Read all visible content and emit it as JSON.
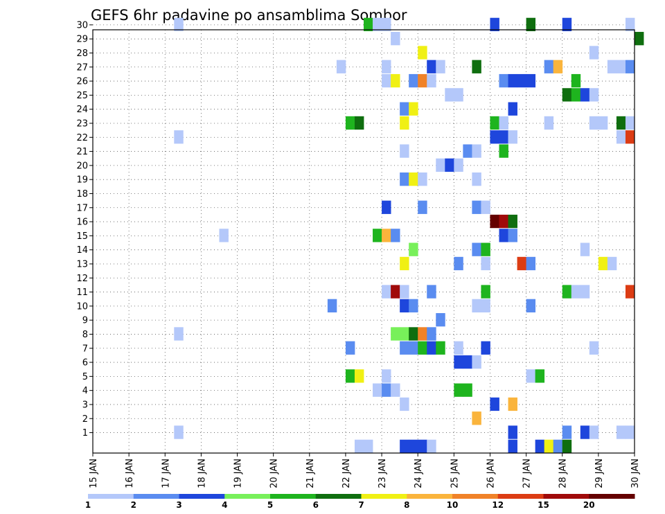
{
  "chart_data": {
    "type": "heatmap",
    "title": "GEFS 6hr padavine po ansamblima Sombor",
    "xlabel": "",
    "ylabel": "",
    "x_tick_labels": [
      "15 JAN",
      "16 JAN",
      "17 JAN",
      "18 JAN",
      "19 JAN",
      "20 JAN",
      "21 JAN",
      "22 JAN",
      "23 JAN",
      "24 JAN",
      "25 JAN",
      "26 JAN",
      "27 JAN",
      "28 JAN",
      "29 JAN",
      "30 JAN"
    ],
    "x_range_days": [
      15,
      30
    ],
    "time_step_hours": 6,
    "y_tick_labels": [
      "1",
      "2",
      "3",
      "4",
      "5",
      "6",
      "7",
      "8",
      "9",
      "10",
      "11",
      "12",
      "13",
      "14",
      "15",
      "16",
      "17",
      "18",
      "19",
      "20",
      "21",
      "22",
      "23",
      "24",
      "25",
      "26",
      "27",
      "28",
      "29",
      "30"
    ],
    "y_range": [
      0,
      30
    ],
    "grid": true,
    "legend": {
      "placement": "bottom",
      "colors": [
        "#b4c8fa",
        "#5a8cf0",
        "#1e46dc",
        "#78f05a",
        "#1eb41e",
        "#0f6e0f",
        "#f0f014",
        "#fab43c",
        "#f08228",
        "#dc3c14",
        "#a00a0a",
        "#640000"
      ],
      "labels": [
        "1",
        "2",
        "3",
        "4",
        "5",
        "6",
        "7",
        "8",
        "10",
        "12",
        "15",
        "20"
      ]
    },
    "cells_encoding": "[member (0-30), time step index (0 = 15 JAN 00Z, 4 per day), color index into legend.colors]",
    "cells": [
      [
        30,
        9,
        0
      ],
      [
        30,
        30,
        4
      ],
      [
        30,
        31,
        0
      ],
      [
        30,
        32,
        0
      ],
      [
        30,
        44,
        2
      ],
      [
        30,
        48,
        5
      ],
      [
        30,
        52,
        2
      ],
      [
        30,
        59,
        0
      ],
      [
        29,
        33,
        0
      ],
      [
        29,
        60,
        5
      ],
      [
        28,
        36,
        6
      ],
      [
        28,
        55,
        0
      ],
      [
        27,
        27,
        0
      ],
      [
        27,
        32,
        0
      ],
      [
        27,
        37,
        2
      ],
      [
        27,
        38,
        0
      ],
      [
        27,
        42,
        5
      ],
      [
        27,
        50,
        1
      ],
      [
        27,
        51,
        7
      ],
      [
        27,
        57,
        0
      ],
      [
        27,
        58,
        0
      ],
      [
        27,
        59,
        1
      ],
      [
        26,
        32,
        0
      ],
      [
        26,
        33,
        6
      ],
      [
        26,
        35,
        1
      ],
      [
        26,
        36,
        8
      ],
      [
        26,
        37,
        0
      ],
      [
        26,
        45,
        1
      ],
      [
        26,
        46,
        2
      ],
      [
        26,
        47,
        2
      ],
      [
        26,
        48,
        2
      ],
      [
        26,
        53,
        4
      ],
      [
        25,
        39,
        0
      ],
      [
        25,
        40,
        0
      ],
      [
        25,
        52,
        5
      ],
      [
        25,
        53,
        4
      ],
      [
        25,
        54,
        2
      ],
      [
        25,
        55,
        0
      ],
      [
        24,
        34,
        1
      ],
      [
        24,
        35,
        6
      ],
      [
        24,
        46,
        2
      ],
      [
        23,
        28,
        4
      ],
      [
        23,
        29,
        5
      ],
      [
        23,
        34,
        6
      ],
      [
        23,
        44,
        4
      ],
      [
        23,
        45,
        0
      ],
      [
        23,
        50,
        0
      ],
      [
        23,
        55,
        0
      ],
      [
        23,
        56,
        0
      ],
      [
        23,
        58,
        5
      ],
      [
        23,
        59,
        0
      ],
      [
        22,
        9,
        0
      ],
      [
        22,
        44,
        2
      ],
      [
        22,
        45,
        2
      ],
      [
        22,
        46,
        0
      ],
      [
        22,
        58,
        0
      ],
      [
        22,
        59,
        9
      ],
      [
        21,
        34,
        0
      ],
      [
        21,
        41,
        1
      ],
      [
        21,
        42,
        0
      ],
      [
        21,
        45,
        4
      ],
      [
        20,
        38,
        0
      ],
      [
        20,
        39,
        2
      ],
      [
        20,
        40,
        0
      ],
      [
        19,
        34,
        1
      ],
      [
        19,
        35,
        6
      ],
      [
        19,
        36,
        0
      ],
      [
        19,
        42,
        0
      ],
      [
        17,
        32,
        2
      ],
      [
        17,
        36,
        1
      ],
      [
        17,
        42,
        1
      ],
      [
        17,
        43,
        0
      ],
      [
        16,
        44,
        11
      ],
      [
        16,
        45,
        10
      ],
      [
        16,
        46,
        5
      ],
      [
        15,
        14,
        0
      ],
      [
        15,
        31,
        4
      ],
      [
        15,
        32,
        7
      ],
      [
        15,
        33,
        1
      ],
      [
        15,
        45,
        2
      ],
      [
        15,
        46,
        1
      ],
      [
        14,
        35,
        3
      ],
      [
        14,
        42,
        1
      ],
      [
        14,
        43,
        4
      ],
      [
        14,
        54,
        0
      ],
      [
        13,
        34,
        6
      ],
      [
        13,
        40,
        1
      ],
      [
        13,
        43,
        0
      ],
      [
        13,
        47,
        9
      ],
      [
        13,
        48,
        1
      ],
      [
        13,
        56,
        6
      ],
      [
        13,
        57,
        0
      ],
      [
        11,
        32,
        0
      ],
      [
        11,
        33,
        10
      ],
      [
        11,
        34,
        0
      ],
      [
        11,
        37,
        1
      ],
      [
        11,
        43,
        4
      ],
      [
        11,
        52,
        4
      ],
      [
        11,
        53,
        0
      ],
      [
        11,
        54,
        0
      ],
      [
        11,
        59,
        9
      ],
      [
        10,
        26,
        1
      ],
      [
        10,
        34,
        2
      ],
      [
        10,
        35,
        1
      ],
      [
        10,
        42,
        0
      ],
      [
        10,
        43,
        0
      ],
      [
        10,
        48,
        1
      ],
      [
        9,
        38,
        1
      ],
      [
        8,
        9,
        0
      ],
      [
        8,
        33,
        3
      ],
      [
        8,
        34,
        3
      ],
      [
        8,
        35,
        5
      ],
      [
        8,
        36,
        8
      ],
      [
        8,
        37,
        1
      ],
      [
        7,
        28,
        1
      ],
      [
        7,
        34,
        1
      ],
      [
        7,
        35,
        1
      ],
      [
        7,
        36,
        4
      ],
      [
        7,
        37,
        2
      ],
      [
        7,
        38,
        4
      ],
      [
        7,
        40,
        0
      ],
      [
        7,
        43,
        2
      ],
      [
        7,
        55,
        0
      ],
      [
        6,
        40,
        2
      ],
      [
        6,
        41,
        2
      ],
      [
        6,
        42,
        0
      ],
      [
        5,
        28,
        4
      ],
      [
        5,
        29,
        6
      ],
      [
        5,
        32,
        0
      ],
      [
        5,
        48,
        0
      ],
      [
        5,
        49,
        4
      ],
      [
        4,
        31,
        0
      ],
      [
        4,
        32,
        1
      ],
      [
        4,
        33,
        0
      ],
      [
        4,
        40,
        4
      ],
      [
        4,
        41,
        4
      ],
      [
        3,
        34,
        0
      ],
      [
        3,
        44,
        2
      ],
      [
        3,
        46,
        7
      ],
      [
        2,
        42,
        7
      ],
      [
        1,
        9,
        0
      ],
      [
        1,
        46,
        2
      ],
      [
        1,
        52,
        1
      ],
      [
        1,
        54,
        2
      ],
      [
        1,
        55,
        0
      ],
      [
        1,
        58,
        0
      ],
      [
        1,
        59,
        0
      ],
      [
        0,
        29,
        0
      ],
      [
        0,
        30,
        0
      ],
      [
        0,
        34,
        2
      ],
      [
        0,
        35,
        2
      ],
      [
        0,
        36,
        2
      ],
      [
        0,
        37,
        0
      ],
      [
        0,
        46,
        2
      ],
      [
        0,
        49,
        2
      ],
      [
        0,
        50,
        6
      ],
      [
        0,
        51,
        1
      ],
      [
        0,
        52,
        5
      ]
    ]
  }
}
